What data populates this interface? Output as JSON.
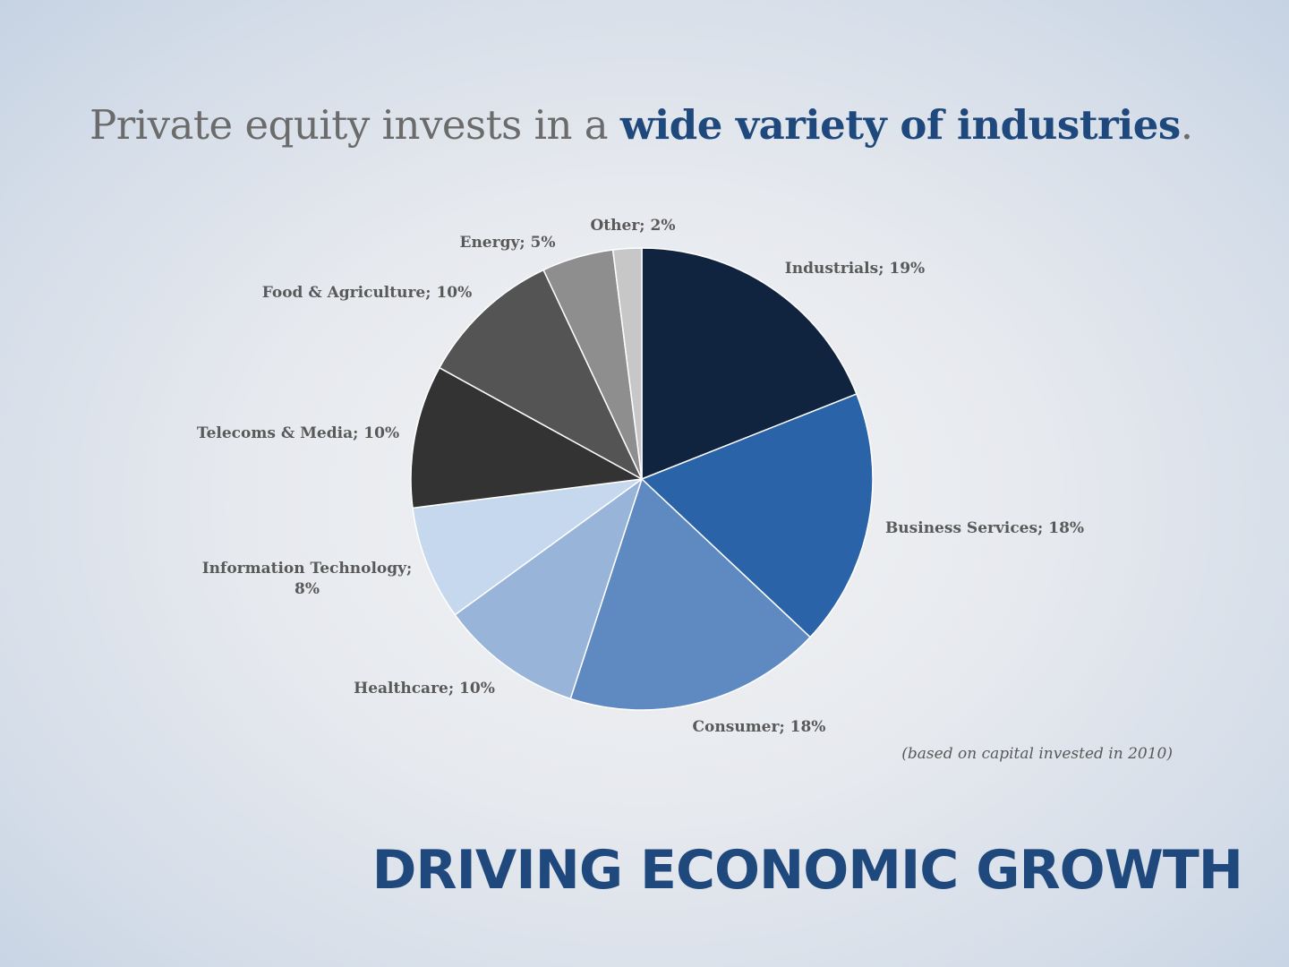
{
  "slide": {
    "headline_pre": "Private equity invests in a ",
    "headline_em": "wide variety of industries",
    "headline_post": ".",
    "footnote": "(based on capital invested in 2010)",
    "brand_title": "DRIVING ECONOMIC GROWTH"
  },
  "chart_data": {
    "type": "pie",
    "title": "",
    "slices": [
      {
        "label": "Industrials; 19%",
        "category": "Industrials",
        "value": 19,
        "color": "#10233f"
      },
      {
        "label": "Business Services; 18%",
        "category": "Business Services",
        "value": 18,
        "color": "#2b63a8"
      },
      {
        "label": "Consumer; 18%",
        "category": "Consumer",
        "value": 18,
        "color": "#5e8ac1"
      },
      {
        "label": "Healthcare; 10%",
        "category": "Healthcare",
        "value": 10,
        "color": "#98b4d8"
      },
      {
        "label": "Information Technology; 8%",
        "lines": [
          "Information Technology;",
          "8%"
        ],
        "category": "Information Technology",
        "value": 8,
        "color": "#c6d8ee"
      },
      {
        "label": "Telecoms & Media; 10%",
        "category": "Telecoms & Media",
        "value": 10,
        "color": "#333333"
      },
      {
        "label": "Food & Agriculture; 10%",
        "category": "Food & Agriculture",
        "value": 10,
        "color": "#545454"
      },
      {
        "label": "Energy; 5%",
        "category": "Energy",
        "value": 5,
        "color": "#8e8e8e"
      },
      {
        "label": "Other; 2%",
        "category": "Other",
        "value": 2,
        "color": "#c7c7c7"
      }
    ],
    "start_angle": "12 o'clock",
    "direction": "clockwise",
    "legend": "none"
  }
}
